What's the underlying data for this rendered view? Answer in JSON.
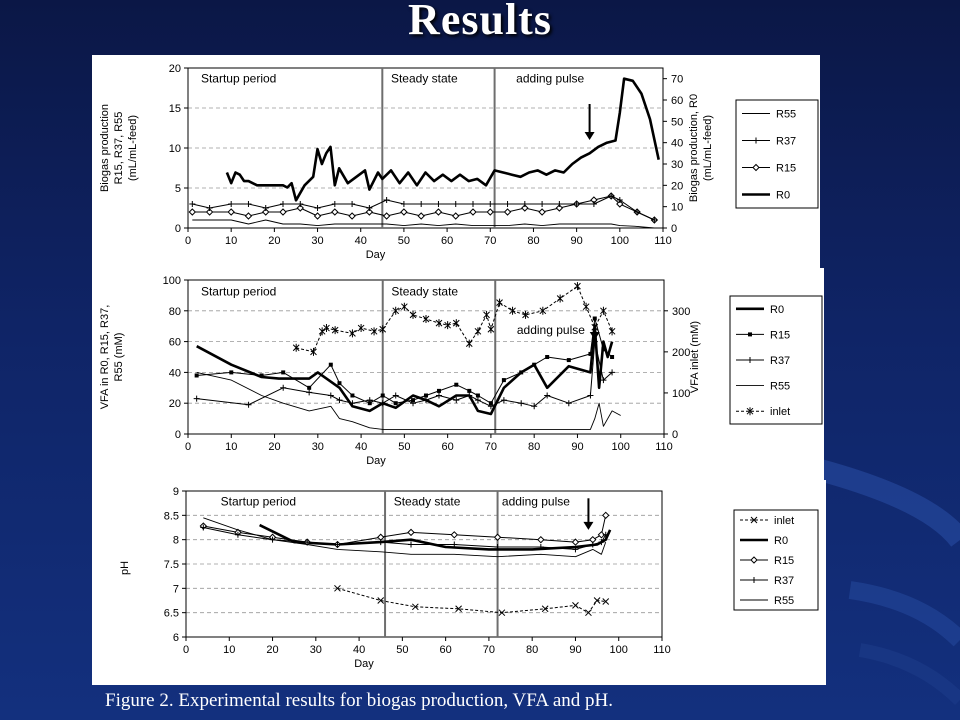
{
  "slide": {
    "title": "Results",
    "caption": "Figure 2. Experimental results for biogas production, VFA and pH."
  },
  "colors": {
    "background": "#0f2466",
    "figure": "#ffffff",
    "ink": "#000000",
    "divider": "#6e6e6e"
  },
  "chart_data": [
    {
      "type": "line",
      "xlabel": "Day",
      "ylabel": "Biogas production R15, R37, R55 (mL/mL-feed)",
      "y2label": "Biogas production, R0 (mL/mL-feed)",
      "xlim": [
        0,
        110
      ],
      "xticks": [
        0,
        10,
        20,
        30,
        40,
        50,
        60,
        70,
        80,
        90,
        100,
        110
      ],
      "ylim": [
        0,
        20
      ],
      "yticks": [
        0,
        5,
        10,
        15,
        20
      ],
      "y2lim": [
        0,
        75
      ],
      "y2ticks": [
        0,
        10,
        20,
        30,
        40,
        50,
        60,
        70
      ],
      "dividers": [
        45,
        71
      ],
      "annotations": [
        {
          "text": "Startup period",
          "x": 3,
          "y": 18.2
        },
        {
          "text": "Steady state",
          "x": 47,
          "y": 18.2
        },
        {
          "text": "adding pulse",
          "x": 76,
          "y": 18.2
        }
      ],
      "arrow": {
        "x": 93,
        "from": 15.5,
        "to": 11
      },
      "legend": {
        "position": "right",
        "entries": [
          "R55",
          "R37",
          "R15",
          "R0"
        ]
      },
      "series": [
        {
          "name": "R0",
          "axis": "y2",
          "style": "bold",
          "x": [
            9,
            10,
            11,
            12,
            13,
            14,
            16,
            18,
            20,
            22,
            23,
            24,
            25,
            27,
            29,
            30,
            31,
            32,
            33,
            34,
            35,
            37,
            39,
            41,
            42,
            44,
            45,
            47,
            49,
            51,
            53,
            55,
            57,
            59,
            61,
            63,
            65,
            67,
            69,
            71,
            73,
            75,
            77,
            79,
            81,
            83,
            85,
            87,
            89,
            91,
            93,
            95,
            97,
            99,
            100,
            101,
            103,
            105,
            107,
            109
          ],
          "y": [
            26,
            21,
            26,
            25,
            22,
            22,
            20,
            20,
            20,
            20,
            19,
            21,
            13,
            20,
            24,
            37,
            30,
            35,
            38,
            20,
            28,
            21,
            24,
            27,
            18,
            26,
            23,
            27,
            21,
            26,
            20,
            26,
            22,
            25,
            22,
            25,
            22,
            23,
            20,
            27,
            26,
            25,
            24,
            26,
            27,
            25,
            27,
            26,
            30,
            33,
            35,
            38,
            40,
            41,
            54,
            70,
            69,
            63,
            51,
            32
          ]
        },
        {
          "name": "R15",
          "axis": "y",
          "marker": "diamond",
          "x": [
            1,
            5,
            10,
            14,
            18,
            22,
            26,
            30,
            34,
            38,
            42,
            46,
            50,
            54,
            58,
            62,
            66,
            70,
            74,
            78,
            82,
            86,
            90,
            94,
            98,
            100,
            104,
            108
          ],
          "y": [
            2,
            2,
            2,
            1.5,
            2,
            2,
            2.5,
            1.5,
            2,
            1.5,
            2,
            1.5,
            2,
            1.5,
            2,
            1.5,
            2,
            2,
            2,
            2.5,
            2,
            2.5,
            3,
            3.5,
            4,
            3,
            2,
            1
          ]
        },
        {
          "name": "R37",
          "axis": "y",
          "marker": "plus",
          "x": [
            1,
            5,
            10,
            14,
            18,
            22,
            26,
            30,
            34,
            38,
            42,
            46,
            50,
            54,
            58,
            62,
            66,
            70,
            74,
            78,
            82,
            86,
            90,
            94,
            98,
            100,
            104,
            108
          ],
          "y": [
            3,
            2.5,
            3,
            3,
            2.5,
            3,
            3,
            2.5,
            3,
            3,
            2.5,
            3.5,
            3,
            3,
            3,
            3,
            3,
            3,
            3,
            3,
            3,
            3,
            3,
            3,
            4,
            3.5,
            2,
            1
          ]
        },
        {
          "name": "R55",
          "axis": "y",
          "style": "thin",
          "x": [
            1,
            5,
            10,
            14,
            18,
            22,
            26,
            30,
            34,
            38,
            42,
            46,
            50,
            54,
            58,
            62,
            66,
            70,
            74,
            78,
            82,
            86,
            90,
            94,
            98,
            100,
            104,
            108
          ],
          "y": [
            1,
            1,
            1,
            0.5,
            1,
            0.5,
            0.5,
            0.3,
            0.5,
            0.5,
            0.5,
            0.5,
            0.3,
            0.5,
            0.3,
            0.5,
            0.3,
            0.3,
            0.3,
            0.5,
            0.3,
            0.5,
            0.5,
            0.5,
            0.5,
            0.3,
            0.2,
            0
          ]
        }
      ]
    },
    {
      "type": "line",
      "xlabel": "Day",
      "ylabel": "VFA in R0, R15, R37, R55 (mM)",
      "y2label": "VFA inlet (mM)",
      "xlim": [
        0,
        110
      ],
      "xticks": [
        0,
        10,
        20,
        30,
        40,
        50,
        60,
        70,
        80,
        90,
        100,
        110
      ],
      "ylim": [
        0,
        100
      ],
      "yticks": [
        0,
        20,
        40,
        60,
        80,
        100
      ],
      "y2lim": [
        0,
        375
      ],
      "y2ticks": [
        0,
        100,
        200,
        300
      ],
      "dividers": [
        45,
        71
      ],
      "annotations": [
        {
          "text": "Startup period",
          "x": 3,
          "y": 90
        },
        {
          "text": "Steady state",
          "x": 47,
          "y": 90
        },
        {
          "text": "adding pulse",
          "x": 76,
          "y": 65
        }
      ],
      "arrow": {
        "x": 94,
        "from": 70,
        "to": 61
      },
      "legend": {
        "position": "right",
        "entries": [
          "R0",
          "R15",
          "R37",
          "R55",
          "inlet"
        ]
      },
      "series": [
        {
          "name": "R0",
          "style": "bold",
          "x": [
            2,
            10,
            17,
            21,
            28,
            30,
            35,
            38,
            42,
            45,
            48,
            52,
            55,
            58,
            62,
            65,
            67,
            70,
            73,
            77,
            80,
            83,
            88,
            93,
            94,
            95,
            96,
            97,
            98
          ],
          "y": [
            57,
            45,
            37,
            36,
            36,
            40,
            30,
            18,
            15,
            20,
            17,
            25,
            22,
            18,
            25,
            25,
            15,
            13,
            30,
            40,
            45,
            30,
            44,
            40,
            70,
            30,
            60,
            50,
            60
          ]
        },
        {
          "name": "R15",
          "marker": "square",
          "x": [
            2,
            10,
            17,
            22,
            28,
            33,
            35,
            38,
            42,
            45,
            48,
            52,
            55,
            58,
            62,
            65,
            67,
            70,
            73,
            77,
            80,
            83,
            88,
            93,
            94,
            96,
            98
          ],
          "y": [
            38,
            40,
            38,
            40,
            30,
            45,
            33,
            25,
            20,
            25,
            20,
            22,
            25,
            28,
            32,
            28,
            25,
            20,
            35,
            40,
            45,
            50,
            48,
            52,
            75,
            55,
            50
          ]
        },
        {
          "name": "R37",
          "marker": "plus",
          "x": [
            2,
            14,
            22,
            28,
            33,
            35,
            38,
            42,
            45,
            48,
            52,
            55,
            58,
            62,
            65,
            67,
            70,
            73,
            77,
            80,
            83,
            88,
            93,
            94,
            96,
            98
          ],
          "y": [
            23,
            19,
            30,
            27,
            25,
            22,
            20,
            22,
            20,
            25,
            20,
            22,
            25,
            22,
            25,
            22,
            18,
            22,
            20,
            18,
            25,
            20,
            25,
            60,
            35,
            40
          ]
        },
        {
          "name": "R55",
          "style": "thin",
          "x": [
            2,
            10,
            17,
            22,
            28,
            33,
            35,
            38,
            42,
            45,
            50,
            55,
            60,
            65,
            70,
            73,
            77,
            80,
            85,
            90,
            93,
            94,
            95,
            96,
            98,
            100
          ],
          "y": [
            40,
            35,
            25,
            20,
            15,
            18,
            10,
            8,
            4,
            3,
            3,
            3,
            3,
            3,
            3,
            3,
            3,
            3,
            3,
            3,
            3,
            10,
            20,
            5,
            15,
            12
          ]
        },
        {
          "name": "inlet",
          "axis": "y2",
          "style": "dashed",
          "marker": "star",
          "x": [
            25,
            29,
            31,
            32,
            34,
            38,
            40,
            43,
            45,
            48,
            50,
            52,
            55,
            58,
            60,
            62,
            65,
            67,
            69,
            70,
            72,
            75,
            78,
            82,
            86,
            90,
            92,
            94,
            96,
            98
          ],
          "y": [
            210,
            200,
            250,
            258,
            253,
            245,
            258,
            250,
            255,
            300,
            310,
            290,
            280,
            270,
            265,
            270,
            220,
            250,
            290,
            255,
            320,
            300,
            290,
            300,
            330,
            360,
            310,
            260,
            300,
            250
          ]
        }
      ]
    },
    {
      "type": "line",
      "xlabel": "Day",
      "ylabel": "pH",
      "xlim": [
        0,
        110
      ],
      "xticks": [
        0,
        10,
        20,
        30,
        40,
        50,
        60,
        70,
        80,
        90,
        100,
        110
      ],
      "ylim": [
        6,
        9
      ],
      "yticks": [
        6,
        6.5,
        7,
        7.5,
        8,
        8.5,
        9
      ],
      "dividers": [
        46,
        72
      ],
      "annotations": [
        {
          "text": "Startup period",
          "x": 8,
          "y": 8.7
        },
        {
          "text": "Steady state",
          "x": 48,
          "y": 8.7
        },
        {
          "text": "adding pulse",
          "x": 73,
          "y": 8.7
        }
      ],
      "arrow": {
        "x": 93,
        "from": 8.85,
        "to": 8.2
      },
      "legend": {
        "position": "right",
        "entries": [
          "inlet",
          "R0",
          "R15",
          "R37",
          "R55"
        ]
      },
      "series": [
        {
          "name": "inlet",
          "style": "dashed",
          "marker": "x",
          "x": [
            35,
            45,
            53,
            63,
            73,
            83,
            90,
            93,
            95,
            97
          ],
          "y": [
            7,
            6.75,
            6.62,
            6.58,
            6.5,
            6.58,
            6.65,
            6.5,
            6.75,
            6.73
          ]
        },
        {
          "name": "R0",
          "style": "bold",
          "x": [
            17,
            25,
            35,
            45,
            52,
            60,
            70,
            80,
            90,
            95,
            97,
            98
          ],
          "y": [
            8.3,
            7.95,
            7.9,
            7.95,
            8,
            7.85,
            7.8,
            7.8,
            7.85,
            7.9,
            8,
            8.2
          ]
        },
        {
          "name": "R15",
          "marker": "diamond",
          "x": [
            4,
            12,
            20,
            28,
            35,
            45,
            52,
            62,
            72,
            82,
            90,
            94,
            96,
            97
          ],
          "y": [
            8.28,
            8.15,
            8.05,
            7.95,
            7.9,
            8.05,
            8.15,
            8.1,
            8.05,
            8,
            7.95,
            8,
            8.1,
            8.5
          ]
        },
        {
          "name": "R37",
          "marker": "plus",
          "x": [
            4,
            12,
            20,
            28,
            35,
            45,
            52,
            62,
            72,
            82,
            90,
            94,
            96,
            97
          ],
          "y": [
            8.25,
            8.1,
            8,
            7.95,
            7.9,
            7.95,
            7.9,
            7.9,
            7.85,
            7.85,
            7.8,
            7.9,
            7.95,
            8.1
          ]
        },
        {
          "name": "R55",
          "style": "thin",
          "x": [
            4,
            12,
            20,
            28,
            35,
            45,
            52,
            62,
            72,
            82,
            90,
            94,
            96,
            97
          ],
          "y": [
            8.45,
            8.2,
            8,
            7.9,
            7.8,
            7.75,
            7.7,
            7.7,
            7.65,
            7.7,
            7.65,
            7.8,
            7.7,
            7.95
          ]
        }
      ]
    }
  ]
}
